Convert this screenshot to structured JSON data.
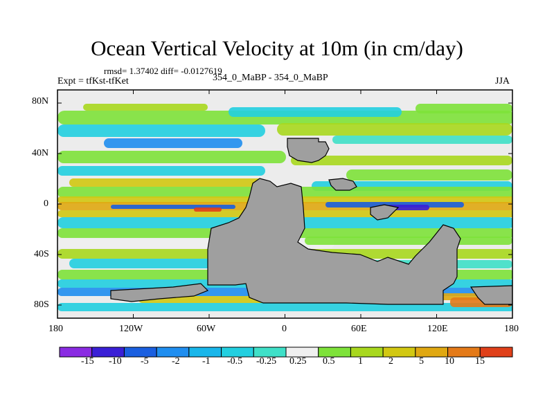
{
  "figure": {
    "title": "Ocean Vertical Velocity at 10m (in cm/day)",
    "stats_line": "rmsd= 1.37402 diff= -0.0127619",
    "experiment": "Expt = tfKst-tfKet",
    "comparison": "354_0_MaBP - 354_0_MaBP",
    "season": "JJA"
  },
  "axes": {
    "y_ticks": [
      "80N",
      "40N",
      "0",
      "40S",
      "80S"
    ],
    "x_ticks": [
      "180",
      "120W",
      "60W",
      "0",
      "60E",
      "120E",
      "180"
    ]
  },
  "colorbar": {
    "labels": [
      "-15",
      "-10",
      "-5",
      "-2",
      "-1",
      "-0.5",
      "-0.25",
      "0.25",
      "0.5",
      "1",
      "2",
      "5",
      "10",
      "15"
    ],
    "colors": [
      "#8a2be2",
      "#3a1fd6",
      "#1a5fe0",
      "#1f8ef0",
      "#19b6ea",
      "#22cfe0",
      "#3fe0c8",
      "#f0f0f0",
      "#7ee23a",
      "#a8d81e",
      "#d2c812",
      "#e0a812",
      "#e47a18",
      "#e0401a"
    ]
  },
  "chart_data": {
    "type": "heatmap",
    "title": "Ocean Vertical Velocity at 10m (in cm/day)",
    "variable": "Ocean vertical velocity at 10m",
    "units": "cm/day",
    "season": "JJA",
    "rmsd": 1.37402,
    "diff": -0.0127619,
    "x_range": [
      -180,
      180
    ],
    "y_range": [
      -90,
      90
    ],
    "x_ticks": [
      -180,
      -120,
      -60,
      0,
      60,
      120,
      180
    ],
    "y_ticks": [
      80,
      40,
      0,
      -40,
      -80
    ],
    "levels": [
      -15,
      -10,
      -5,
      -2,
      -1,
      -0.5,
      -0.25,
      0.25,
      0.5,
      1,
      2,
      5,
      10,
      15
    ]
  }
}
